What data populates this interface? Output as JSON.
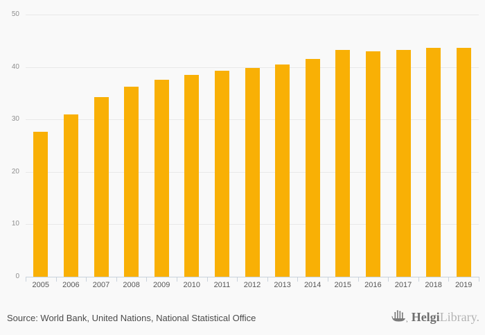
{
  "chart_data": {
    "type": "bar",
    "title": "",
    "xlabel": "",
    "ylabel": "",
    "categories": [
      "2005",
      "2006",
      "2007",
      "2008",
      "2009",
      "2010",
      "2011",
      "2012",
      "2013",
      "2014",
      "2015",
      "2016",
      "2017",
      "2018",
      "2019"
    ],
    "values": [
      27.7,
      30.9,
      34.3,
      36.3,
      37.6,
      38.5,
      39.3,
      39.8,
      40.5,
      41.6,
      43.3,
      43.0,
      43.3,
      43.6,
      43.7
    ],
    "ylim": [
      0,
      50
    ],
    "yticks": [
      0,
      10,
      20,
      30,
      40,
      50
    ],
    "grid": true,
    "legend_position": "none",
    "bar_color": "#f9b005"
  },
  "footer": {
    "source_text": "Source: World Bank, United Nations, National Statistical Office",
    "brand": {
      "logo_icon": "viking-ship-icon",
      "name_bold": "Helgi",
      "name_light": "Library."
    }
  },
  "colors": {
    "background": "#f9f9f9",
    "gridline": "#e9e9e9",
    "axis": "#c9d2dc",
    "y_label": "#8e8e8e",
    "x_label": "#555555",
    "source_text": "#4a4a4a",
    "brand_bold": "#6e6e6e",
    "brand_light": "#b3b3b3",
    "bar": "#f9b005"
  }
}
